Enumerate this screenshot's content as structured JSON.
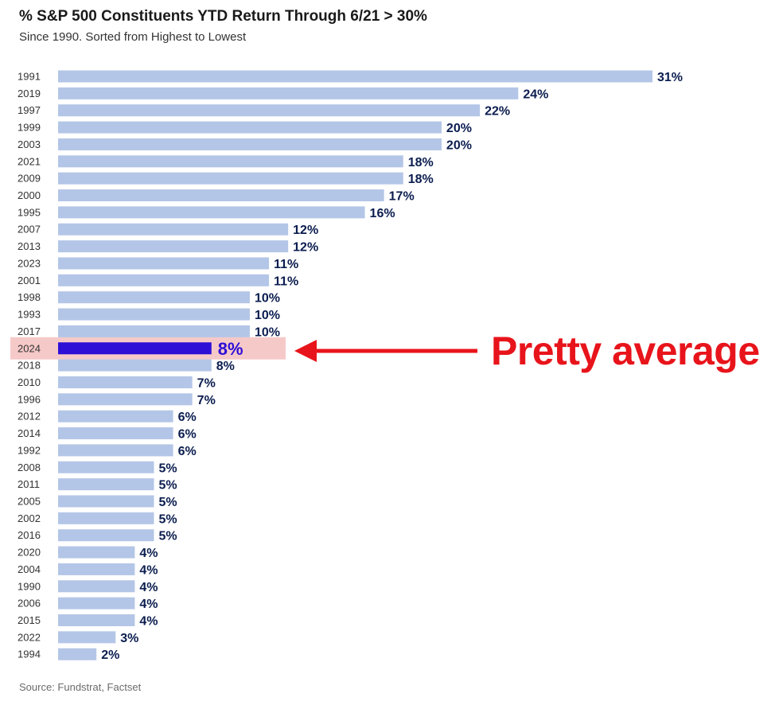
{
  "header": {
    "title": "% S&P 500 Constituents YTD Return Through 6/21 > 30%",
    "subtitle": "Since 1990. Sorted from Highest to Lowest"
  },
  "footer": {
    "source": "Source: Fundstrat, Factset"
  },
  "annotation": {
    "text": "Pretty average",
    "highlight_year": "2024",
    "color": "#e8141b",
    "highlight_fill": "#f6c9c9"
  },
  "colors": {
    "bar": "#b4c6e7",
    "highlight_bar": "#2d0fd6",
    "label": "#0b1d4f",
    "highlight_label": "#2d0fd6"
  },
  "chart_data": {
    "type": "bar",
    "orientation": "horizontal",
    "title": "% S&P 500 Constituents YTD Return Through 6/21 > 30%",
    "subtitle": "Since 1990. Sorted from Highest to Lowest",
    "categories": [
      "1991",
      "2019",
      "1997",
      "1999",
      "2003",
      "2021",
      "2009",
      "2000",
      "1995",
      "2007",
      "2013",
      "2023",
      "2001",
      "1998",
      "1993",
      "2017",
      "2024",
      "2018",
      "2010",
      "1996",
      "2012",
      "2014",
      "1992",
      "2008",
      "2011",
      "2005",
      "2002",
      "2016",
      "2020",
      "2004",
      "1990",
      "2006",
      "2015",
      "2022",
      "1994"
    ],
    "values": [
      31,
      24,
      22,
      20,
      20,
      18,
      18,
      17,
      16,
      12,
      12,
      11,
      11,
      10,
      10,
      10,
      8,
      8,
      7,
      7,
      6,
      6,
      6,
      5,
      5,
      5,
      5,
      5,
      4,
      4,
      4,
      4,
      4,
      3,
      2
    ],
    "labels": [
      "31%",
      "24%",
      "22%",
      "20%",
      "20%",
      "18%",
      "18%",
      "17%",
      "16%",
      "12%",
      "12%",
      "11%",
      "11%",
      "10%",
      "10%",
      "10%",
      "8%",
      "8%",
      "7%",
      "7%",
      "6%",
      "6%",
      "6%",
      "5%",
      "5%",
      "5%",
      "5%",
      "5%",
      "4%",
      "4%",
      "4%",
      "4%",
      "4%",
      "3%",
      "2%"
    ],
    "value_unit": "%",
    "xlim": [
      0,
      31
    ],
    "grid": false,
    "legend": "none"
  }
}
